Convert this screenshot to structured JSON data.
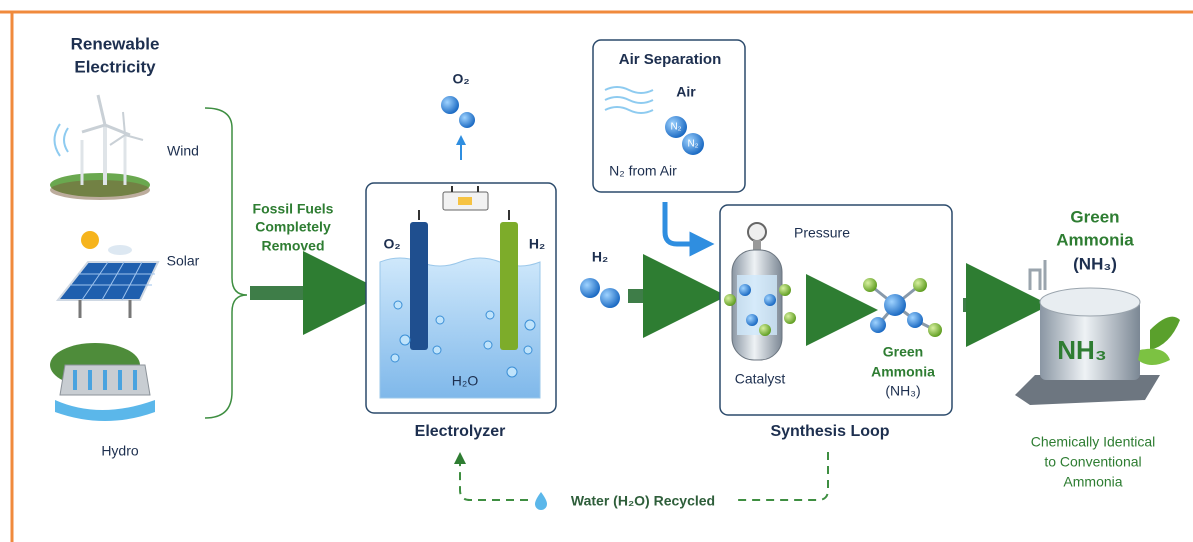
{
  "header": {
    "title_lines": [
      "Renewable",
      "Electricity"
    ]
  },
  "sources": [
    {
      "label": "Wind"
    },
    {
      "label": "Solar"
    },
    {
      "label": "Hydro"
    }
  ],
  "annotation": {
    "lines": [
      "Fossil Fuels",
      "Completely",
      "Removed"
    ]
  },
  "electrolyzer": {
    "label": "Electrolyzer",
    "output": "O₂",
    "anode": "O₂",
    "cathode": "H₂",
    "electrolyte": "H₂O"
  },
  "hydrogen": {
    "label": "H₂"
  },
  "air_separation": {
    "title": "Air Separation",
    "input": "Air",
    "molecule_labels": [
      "N₂",
      "N₂"
    ],
    "output": "N₂ from Air"
  },
  "synthesis_loop": {
    "label": "Synthesis Loop",
    "pressure": "Pressure",
    "catalyst": "Catalyst",
    "product_lines": [
      "Green",
      "Ammonia",
      "(NH₃)"
    ]
  },
  "product": {
    "title_lines": [
      "Green",
      "Ammonia",
      "(NH₃)"
    ],
    "tank_label": "NH₃",
    "note_lines": [
      "Chemically Identical",
      "to Conventional",
      "Ammonia"
    ]
  },
  "recycle": {
    "label": "Water (H₂O) Recycled"
  }
}
